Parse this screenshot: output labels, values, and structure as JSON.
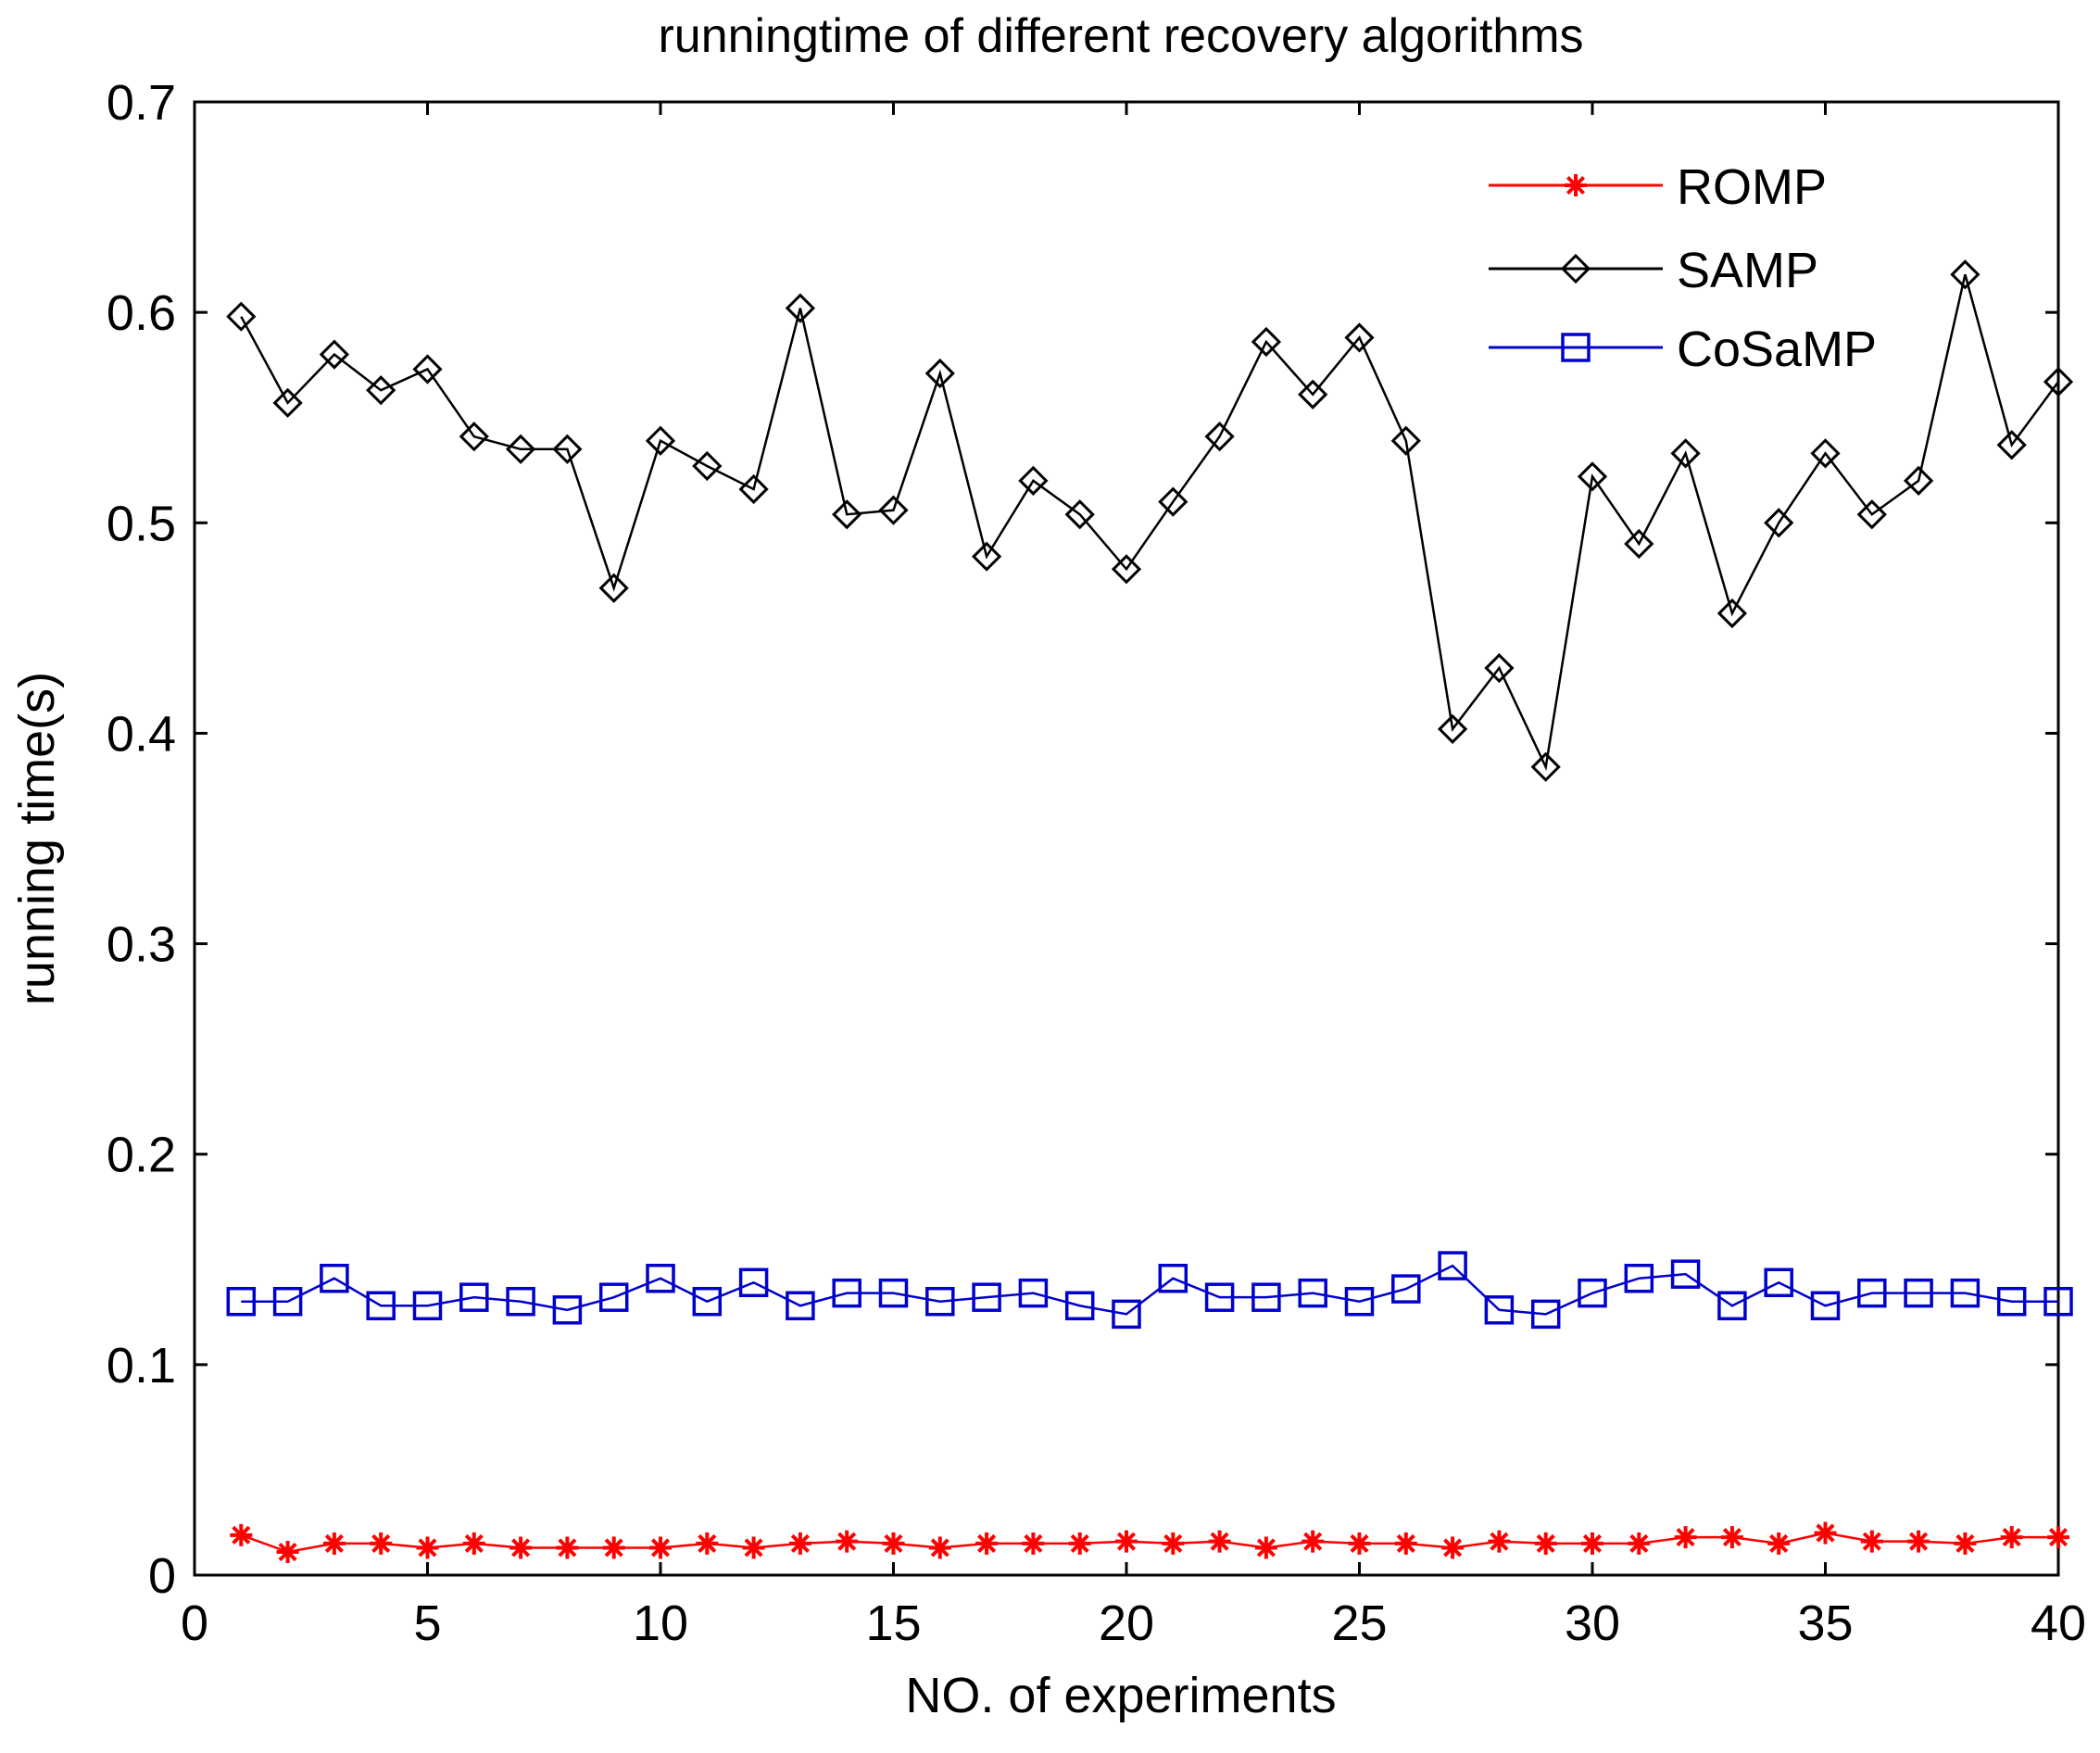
{
  "chart_data": {
    "type": "line",
    "title": "runningtime of different recovery algorithms",
    "xlabel": "NO. of experiments",
    "ylabel": "running time(s)",
    "xlim": [
      0,
      40
    ],
    "ylim": [
      0,
      0.7
    ],
    "xticks": [
      0,
      5,
      10,
      15,
      20,
      25,
      30,
      35,
      40
    ],
    "xtick_labels": [
      "0",
      "5",
      "10",
      "15",
      "20",
      "25",
      "30",
      "35",
      "40"
    ],
    "yticks": [
      0,
      0.1,
      0.2,
      0.3,
      0.4,
      0.5,
      0.6,
      0.7
    ],
    "ytick_labels": [
      "0",
      "0.1",
      "0.2",
      "0.3",
      "0.4",
      "0.5",
      "0.6",
      "0.7"
    ],
    "grid": false,
    "legend_position": "top-right",
    "x": [
      1,
      2,
      3,
      4,
      5,
      6,
      7,
      8,
      9,
      10,
      11,
      12,
      13,
      14,
      15,
      16,
      17,
      18,
      19,
      20,
      21,
      22,
      23,
      24,
      25,
      26,
      27,
      28,
      29,
      30,
      31,
      32,
      33,
      34,
      35,
      36,
      37,
      38,
      39,
      40
    ],
    "series": [
      {
        "name": "ROMP",
        "color": "#ff0000",
        "marker": "asterisk",
        "values": [
          0.019,
          0.011,
          0.015,
          0.015,
          0.013,
          0.015,
          0.013,
          0.013,
          0.013,
          0.013,
          0.015,
          0.013,
          0.015,
          0.016,
          0.015,
          0.013,
          0.015,
          0.015,
          0.015,
          0.016,
          0.015,
          0.016,
          0.013,
          0.016,
          0.015,
          0.015,
          0.013,
          0.016,
          0.015,
          0.015,
          0.015,
          0.018,
          0.018,
          0.015,
          0.02,
          0.016,
          0.016,
          0.015,
          0.018,
          0.018
        ]
      },
      {
        "name": "SAMP",
        "color": "#000000",
        "marker": "diamond",
        "values": [
          0.598,
          0.557,
          0.58,
          0.563,
          0.573,
          0.541,
          0.535,
          0.535,
          0.469,
          0.539,
          0.527,
          0.516,
          0.602,
          0.504,
          0.506,
          0.571,
          0.484,
          0.52,
          0.504,
          0.478,
          0.51,
          0.541,
          0.586,
          0.561,
          0.588,
          0.539,
          0.402,
          0.431,
          0.384,
          0.522,
          0.49,
          0.533,
          0.457,
          0.5,
          0.533,
          0.504,
          0.52,
          0.618,
          0.537,
          0.567
        ]
      },
      {
        "name": "CoSaMP",
        "color": "#0000cc",
        "marker": "square",
        "values": [
          0.13,
          0.13,
          0.141,
          0.128,
          0.128,
          0.132,
          0.13,
          0.126,
          0.132,
          0.141,
          0.13,
          0.139,
          0.128,
          0.134,
          0.134,
          0.13,
          0.132,
          0.134,
          0.128,
          0.124,
          0.141,
          0.132,
          0.132,
          0.134,
          0.13,
          0.136,
          0.147,
          0.126,
          0.124,
          0.134,
          0.141,
          0.143,
          0.128,
          0.139,
          0.128,
          0.134,
          0.134,
          0.134,
          0.13,
          0.13
        ]
      }
    ]
  }
}
